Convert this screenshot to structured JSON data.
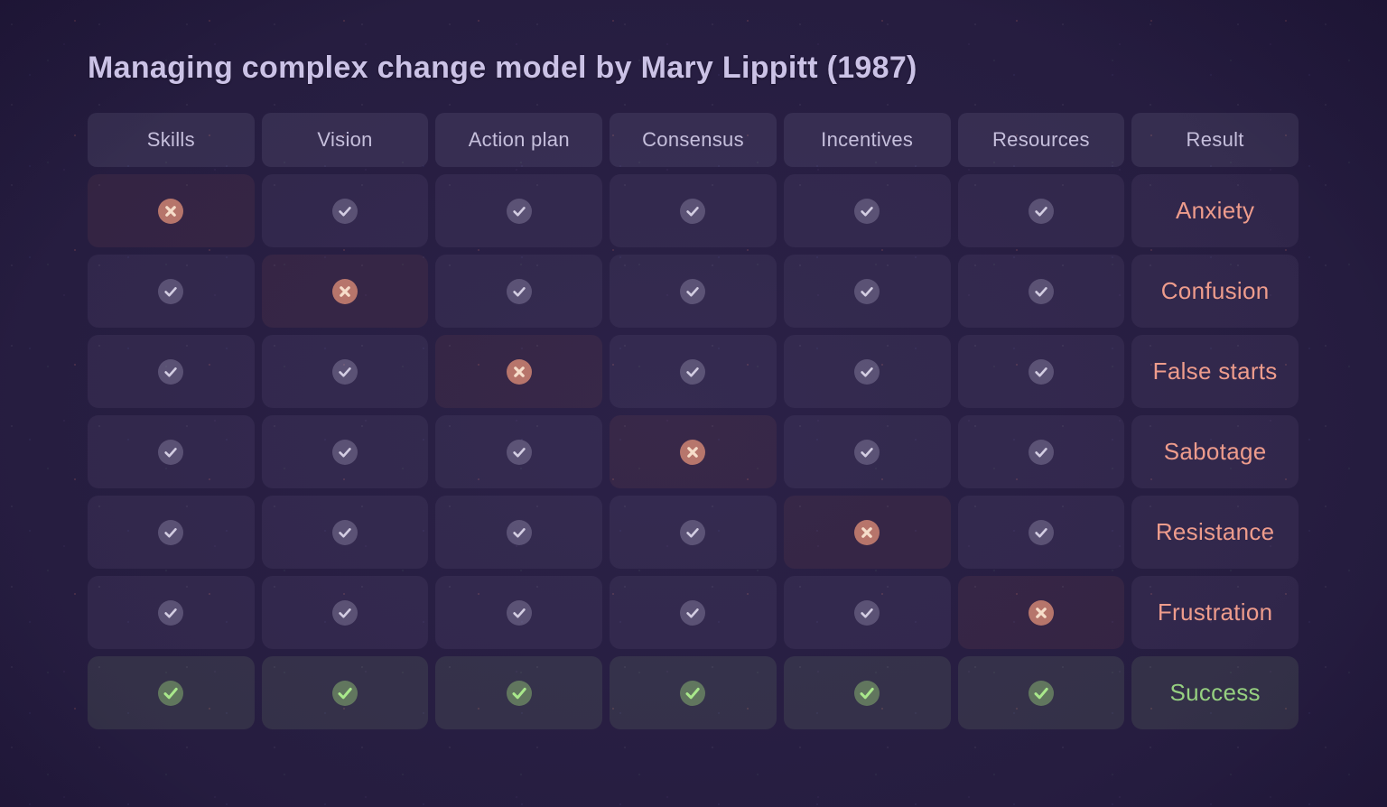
{
  "title": "Managing complex change model by Mary Lippitt (1987)",
  "colors": {
    "background": "#241b3e",
    "title_text": "#cbc2e6",
    "header_text": "#c6bfdc",
    "negative_result_text": "#ee9c8c",
    "positive_result_text": "#96d080",
    "check_circle": "rgba(185,178,210,0.30)",
    "check_stroke": "#d3cde2",
    "cross_circle": "rgba(233,148,122,0.72)",
    "cross_stroke": "#f6ddca",
    "success_circle": "rgba(150,205,120,0.45)",
    "success_stroke": "#a9e88b"
  },
  "icons": {
    "check": "check-icon",
    "cross": "cross-icon",
    "success": "success-check-icon"
  },
  "chart_data": {
    "type": "table",
    "title": "Managing complex change model by Mary Lippitt (1987)",
    "columns": [
      "Skills",
      "Vision",
      "Action plan",
      "Consensus",
      "Incentives",
      "Resources",
      "Result"
    ],
    "rows": [
      {
        "result": "Anxiety",
        "missing": "Skills",
        "missing_index": 0,
        "outcome": "negative",
        "cells": [
          "cross",
          "check",
          "check",
          "check",
          "check",
          "check"
        ]
      },
      {
        "result": "Confusion",
        "missing": "Vision",
        "missing_index": 1,
        "outcome": "negative",
        "cells": [
          "check",
          "cross",
          "check",
          "check",
          "check",
          "check"
        ]
      },
      {
        "result": "False starts",
        "missing": "Action plan",
        "missing_index": 2,
        "outcome": "negative",
        "cells": [
          "check",
          "check",
          "cross",
          "check",
          "check",
          "check"
        ]
      },
      {
        "result": "Sabotage",
        "missing": "Consensus",
        "missing_index": 3,
        "outcome": "negative",
        "cells": [
          "check",
          "check",
          "check",
          "cross",
          "check",
          "check"
        ]
      },
      {
        "result": "Resistance",
        "missing": "Incentives",
        "missing_index": 4,
        "outcome": "negative",
        "cells": [
          "check",
          "check",
          "check",
          "check",
          "cross",
          "check"
        ]
      },
      {
        "result": "Frustration",
        "missing": "Resources",
        "missing_index": 5,
        "outcome": "negative",
        "cells": [
          "check",
          "check",
          "check",
          "check",
          "check",
          "cross"
        ]
      },
      {
        "result": "Success",
        "missing": null,
        "missing_index": -1,
        "outcome": "positive",
        "cells": [
          "success",
          "success",
          "success",
          "success",
          "success",
          "success"
        ]
      }
    ]
  }
}
